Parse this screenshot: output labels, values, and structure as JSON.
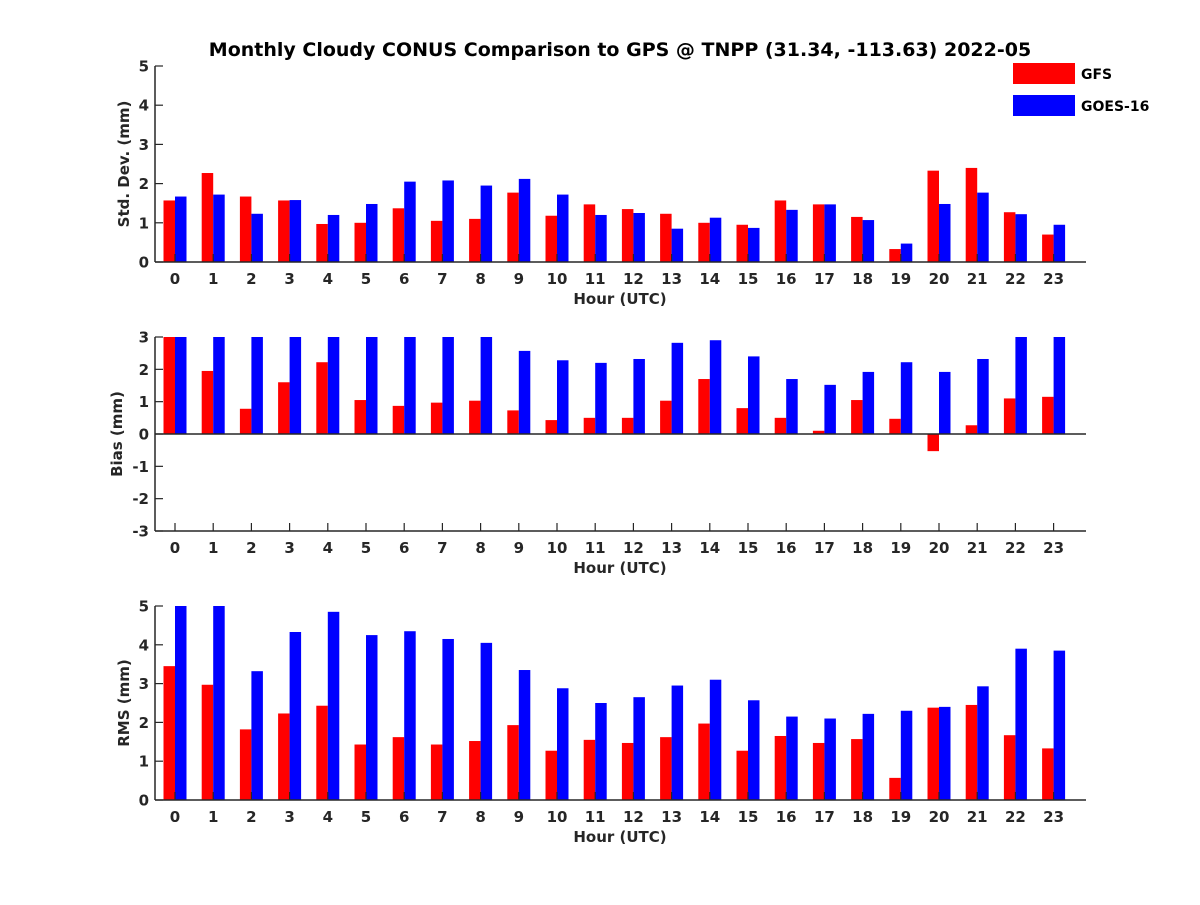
{
  "title": "Monthly Cloudy CONUS Comparison to GPS @ TNPP (31.34, -113.63) 2022-05",
  "legend": {
    "placement": "top-right",
    "entries": [
      {
        "label": "GFS",
        "color": "#ff0000"
      },
      {
        "label": "GOES-16",
        "color": "#0000ff"
      }
    ]
  },
  "chart_data": [
    {
      "type": "bar",
      "title": "Monthly Cloudy CONUS Comparison to GPS @ TNPP (31.34, -113.63) 2022-05",
      "xlabel": "Hour (UTC)",
      "ylabel": "Std. Dev. (mm)",
      "ylim": [
        0,
        5
      ],
      "yticks": [
        0,
        1,
        2,
        3,
        4,
        5
      ],
      "grid": false,
      "categories": [
        "0",
        "1",
        "2",
        "3",
        "4",
        "5",
        "6",
        "7",
        "8",
        "9",
        "10",
        "11",
        "12",
        "13",
        "14",
        "15",
        "16",
        "17",
        "18",
        "19",
        "20",
        "21",
        "22",
        "23"
      ],
      "series": [
        {
          "name": "GFS",
          "color": "#ff0000",
          "values": [
            1.57,
            2.27,
            1.67,
            1.57,
            0.97,
            1.0,
            1.37,
            1.05,
            1.1,
            1.77,
            1.18,
            1.47,
            1.35,
            1.23,
            1.0,
            0.95,
            1.57,
            1.47,
            1.15,
            0.33,
            2.33,
            2.4,
            1.27,
            0.7
          ]
        },
        {
          "name": "GOES-16",
          "color": "#0000ff",
          "values": [
            1.67,
            1.72,
            1.23,
            1.58,
            1.2,
            1.48,
            2.05,
            2.08,
            1.95,
            2.12,
            1.72,
            1.2,
            1.25,
            0.85,
            1.13,
            0.87,
            1.33,
            1.47,
            1.07,
            0.47,
            1.48,
            1.77,
            1.22,
            0.95
          ]
        }
      ]
    },
    {
      "type": "bar",
      "xlabel": "Hour (UTC)",
      "ylabel": "Bias (mm)",
      "ylim": [
        -3,
        3
      ],
      "yticks": [
        -3,
        -2,
        -1,
        0,
        1,
        2,
        3
      ],
      "grid": false,
      "categories": [
        "0",
        "1",
        "2",
        "3",
        "4",
        "5",
        "6",
        "7",
        "8",
        "9",
        "10",
        "11",
        "12",
        "13",
        "14",
        "15",
        "16",
        "17",
        "18",
        "19",
        "20",
        "21",
        "22",
        "23"
      ],
      "series": [
        {
          "name": "GFS",
          "color": "#ff0000",
          "values": [
            3.0,
            1.95,
            0.78,
            1.6,
            2.22,
            1.05,
            0.87,
            0.97,
            1.03,
            0.73,
            0.43,
            0.5,
            0.5,
            1.03,
            1.7,
            0.8,
            0.5,
            0.1,
            1.05,
            0.47,
            -0.53,
            0.27,
            1.1,
            1.15
          ]
        },
        {
          "name": "GOES-16",
          "color": "#0000ff",
          "values": [
            3.0,
            3.0,
            3.0,
            3.0,
            3.0,
            3.0,
            3.0,
            3.0,
            3.0,
            2.57,
            2.28,
            2.2,
            2.32,
            2.82,
            2.9,
            2.4,
            1.7,
            1.52,
            1.92,
            2.22,
            1.92,
            2.32,
            3.0,
            3.0
          ]
        }
      ]
    },
    {
      "type": "bar",
      "xlabel": "Hour (UTC)",
      "ylabel": "RMS (mm)",
      "ylim": [
        0,
        5
      ],
      "yticks": [
        0,
        1,
        2,
        3,
        4,
        5
      ],
      "grid": false,
      "categories": [
        "0",
        "1",
        "2",
        "3",
        "4",
        "5",
        "6",
        "7",
        "8",
        "9",
        "10",
        "11",
        "12",
        "13",
        "14",
        "15",
        "16",
        "17",
        "18",
        "19",
        "20",
        "21",
        "22",
        "23"
      ],
      "series": [
        {
          "name": "GFS",
          "color": "#ff0000",
          "values": [
            3.45,
            2.97,
            1.82,
            2.23,
            2.43,
            1.43,
            1.62,
            1.43,
            1.52,
            1.93,
            1.27,
            1.55,
            1.47,
            1.62,
            1.97,
            1.27,
            1.65,
            1.47,
            1.57,
            0.57,
            2.38,
            2.45,
            1.67,
            1.33
          ]
        },
        {
          "name": "GOES-16",
          "color": "#0000ff",
          "values": [
            5.0,
            5.0,
            3.32,
            4.33,
            4.85,
            4.25,
            4.35,
            4.15,
            4.05,
            3.35,
            2.88,
            2.5,
            2.65,
            2.95,
            3.1,
            2.57,
            2.15,
            2.1,
            2.22,
            2.3,
            2.4,
            2.93,
            3.9,
            3.85
          ]
        }
      ]
    }
  ]
}
